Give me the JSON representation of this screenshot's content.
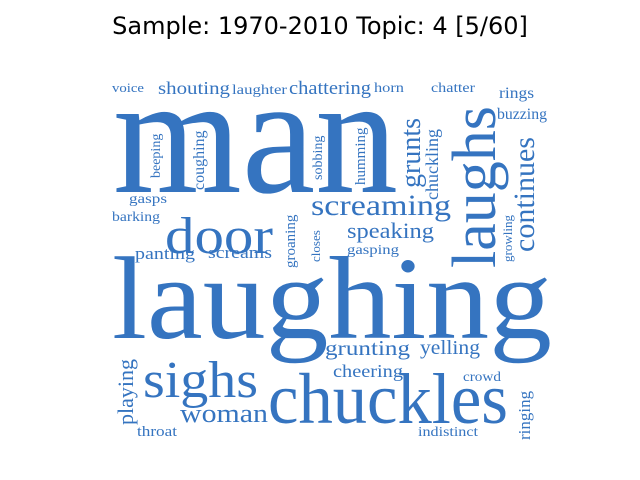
{
  "title": "Sample: 1970-2010 Topic: 4 [5/60]",
  "colors": {
    "word": "#3574c0",
    "title": "#000000",
    "background": "#ffffff"
  },
  "words": [
    {
      "text": "man",
      "rank": 1
    },
    {
      "text": "laughing",
      "rank": 2
    },
    {
      "text": "laughs",
      "rank": 3
    },
    {
      "text": "chuckles",
      "rank": 4
    },
    {
      "text": "door",
      "rank": 5
    },
    {
      "text": "sighs",
      "rank": 6
    },
    {
      "text": "screaming",
      "rank": 7
    },
    {
      "text": "continues",
      "rank": 8
    },
    {
      "text": "grunts",
      "rank": 9
    },
    {
      "text": "woman",
      "rank": 10
    },
    {
      "text": "speaking",
      "rank": 11
    },
    {
      "text": "grunting",
      "rank": 12
    },
    {
      "text": "yelling",
      "rank": 13
    },
    {
      "text": "cheering",
      "rank": 14
    },
    {
      "text": "playing",
      "rank": 15
    },
    {
      "text": "chattering",
      "rank": 16
    },
    {
      "text": "shouting",
      "rank": 17
    },
    {
      "text": "screams",
      "rank": 18
    },
    {
      "text": "panting",
      "rank": 19
    },
    {
      "text": "chuckling",
      "rank": 20
    },
    {
      "text": "humming",
      "rank": 21
    },
    {
      "text": "coughing",
      "rank": 22
    },
    {
      "text": "groaning",
      "rank": 23
    },
    {
      "text": "ringing",
      "rank": 24
    },
    {
      "text": "sobbing",
      "rank": 25
    },
    {
      "text": "laughter",
      "rank": 26
    },
    {
      "text": "gasping",
      "rank": 27
    },
    {
      "text": "buzzing",
      "rank": 28
    },
    {
      "text": "rings",
      "rank": 29
    },
    {
      "text": "chatter",
      "rank": 30
    },
    {
      "text": "crowd",
      "rank": 31
    },
    {
      "text": "throat",
      "rank": 32
    },
    {
      "text": "indistinct",
      "rank": 33
    },
    {
      "text": "barking",
      "rank": 34
    },
    {
      "text": "beeping",
      "rank": 35
    },
    {
      "text": "gasps",
      "rank": 36
    },
    {
      "text": "closes",
      "rank": 37
    },
    {
      "text": "growling",
      "rank": 38
    },
    {
      "text": "horn",
      "rank": 39
    },
    {
      "text": "voice",
      "rank": 40
    }
  ]
}
